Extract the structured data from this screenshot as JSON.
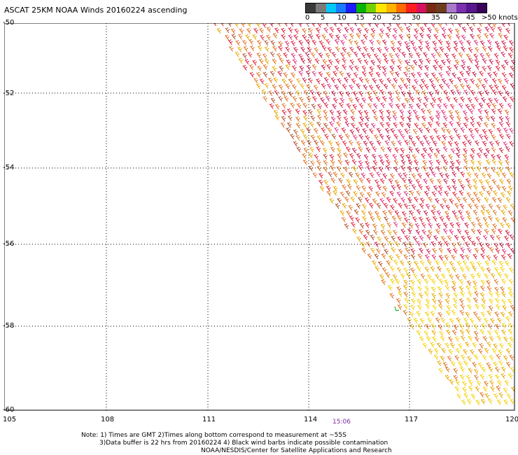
{
  "title": "ASCAT 25KM NOAA Winds 20160224 ascending",
  "legend": {
    "colors": [
      "#3a3a3a",
      "#7a7a7a",
      "#00c8ff",
      "#1a7aff",
      "#1c1cff",
      "#00b400",
      "#70d000",
      "#ffe600",
      "#ffb000",
      "#ff6a00",
      "#ff1e1e",
      "#d81060",
      "#7a2a14",
      "#6e3c1e",
      "#a87ac8",
      "#7a30b0",
      "#58178c",
      "#3c005a"
    ],
    "labels": [
      "0",
      "5",
      "10",
      "15",
      "20",
      "25",
      "30",
      "35",
      "40",
      "45",
      ">50 knots"
    ]
  },
  "map": {
    "lat_labels": [
      "-50",
      "-52",
      "-54",
      "-56",
      "-58",
      "-60"
    ],
    "lon_labels": [
      "105",
      "108",
      "111",
      "114",
      "117",
      "120"
    ],
    "time_label": "15:06"
  },
  "notes": {
    "line1": "Note: 1) Times are GMT 2)Times along bottom correspond to measurement at ~55S",
    "line2": "3)Data buffer is 22 hrs from 20160224 4) Black wind barbs indicate possible contamination",
    "line3": "NOAA/NESDIS/Center for Satellite Applications and Research"
  },
  "barb_palette": {
    "red": "#e0203a",
    "crimson": "#c81848",
    "orange": "#e07020",
    "brown": "#b0502a",
    "yellow": "#f4d000",
    "gold": "#e8a800",
    "pink": "#e0307a",
    "green": "#00a000"
  }
}
